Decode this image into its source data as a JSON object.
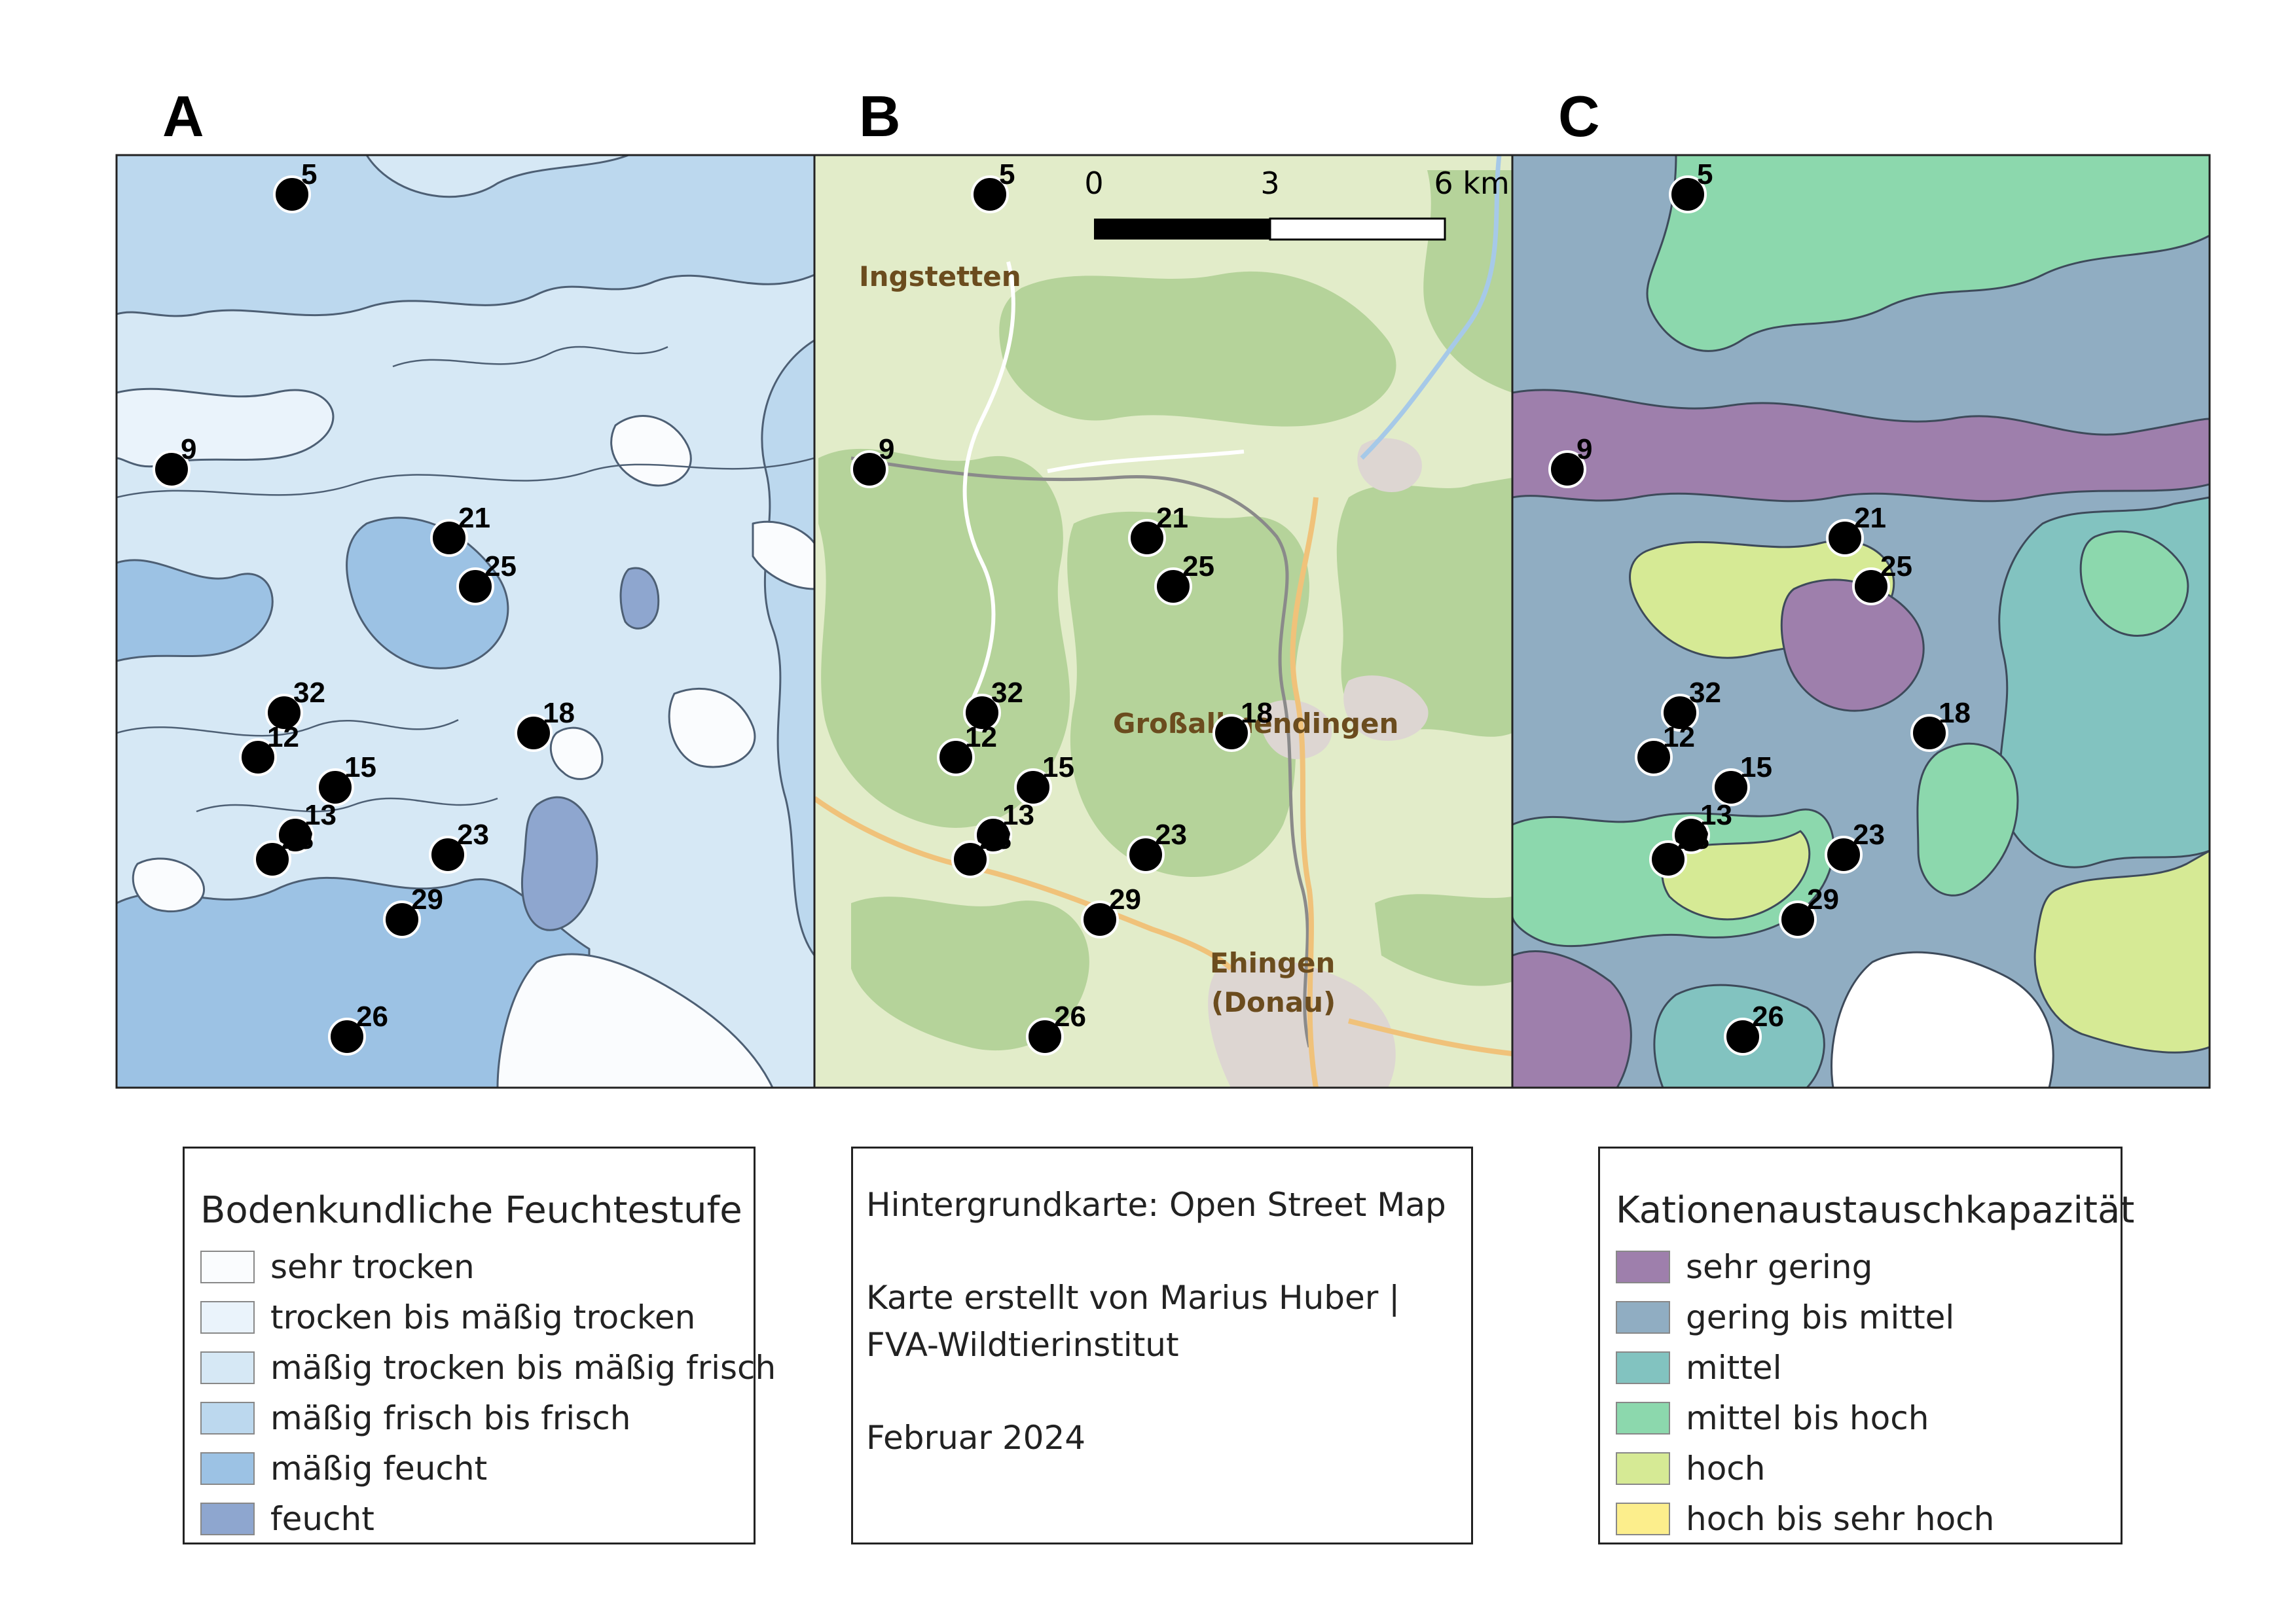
{
  "panels": [
    {
      "id": "A",
      "letter": "A"
    },
    {
      "id": "B",
      "letter": "B"
    },
    {
      "id": "C",
      "letter": "C"
    }
  ],
  "sites": [
    "5",
    "9",
    "21",
    "25",
    "32",
    "18",
    "12",
    "15",
    "13",
    "28",
    "23",
    "29",
    "26"
  ],
  "map_b": {
    "places": [
      "Ingstetten",
      "Großallmendingen",
      "Ehingen",
      "(Donau)"
    ],
    "scale_bar": {
      "labels": [
        "0",
        "3",
        "6 km"
      ]
    }
  },
  "legend_moisture": {
    "title": "Bodenkundliche Feuchtestufe",
    "items": [
      {
        "label": "sehr trocken",
        "color": "#fafcfe"
      },
      {
        "label": "trocken bis mäßig trocken",
        "color": "#eaf3fb"
      },
      {
        "label": "mäßig trocken bis mäßig frisch",
        "color": "#d6e8f5"
      },
      {
        "label": "mäßig frisch bis frisch",
        "color": "#bcd8ee"
      },
      {
        "label": "mäßig feucht",
        "color": "#9cc2e4"
      },
      {
        "label": "feucht",
        "color": "#8ea6cf"
      }
    ]
  },
  "credits": {
    "line1": "Hintergrundkarte: Open Street Map",
    "line2": "Karte erstellt von Marius Huber |",
    "line3": "FVA-Wildtierinstitut",
    "line4": "Februar 2024"
  },
  "legend_cec": {
    "title": "Kationenaustauschkapazität",
    "items": [
      {
        "label": "sehr gering",
        "color": "#9e7fac"
      },
      {
        "label": "gering bis mittel",
        "color": "#90adc2"
      },
      {
        "label": "mittel",
        "color": "#82c3c0"
      },
      {
        "label": "mittel bis hoch",
        "color": "#8cd8ad"
      },
      {
        "label": "hoch",
        "color": "#d6ea95"
      },
      {
        "label": "hoch bis sehr hoch",
        "color": "#fcee8c"
      }
    ]
  },
  "colors": {
    "map_b_base": "#f1eee6",
    "map_b_forest": "#b5d39a",
    "map_b_field": "#e2ecc9",
    "map_b_town": "#ddd6d2"
  }
}
